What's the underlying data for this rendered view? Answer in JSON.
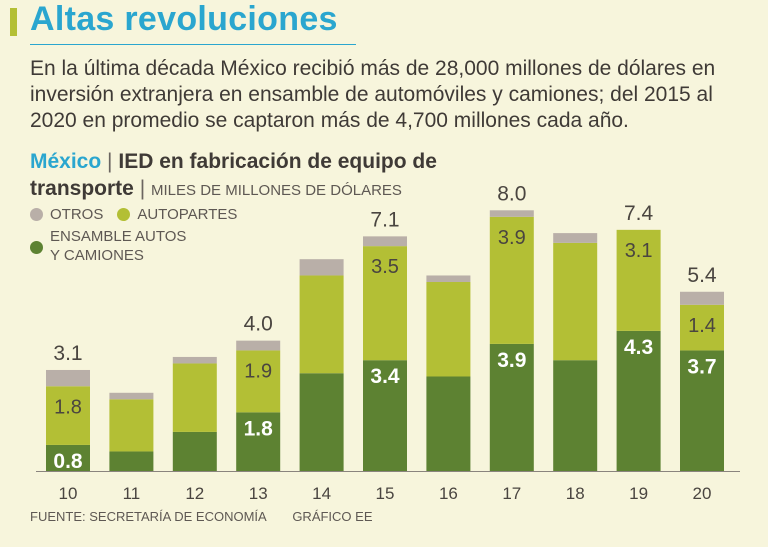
{
  "header": {
    "title": "Altas revoluciones",
    "intro": "En la última década México recibió más de 28,000 millones de dólares en inversión extranjera en ensamble de automóviles y camiones; del 2015 al 2020 en promedio se captaron más de 4,700 millones cada año."
  },
  "chart_heading": {
    "place": "México",
    "separator": "|",
    "topic": "IED en fabricación de equipo de transporte",
    "separator2": "|",
    "units": "MILES DE MILLONES DE DÓLARES"
  },
  "legend": {
    "otros": "OTROS",
    "autopartes": "AUTOPARTES",
    "ensamble": "ENSAMBLE AUTOS Y CAMIONES"
  },
  "footer": {
    "source": "FUENTE: SECRETARÍA DE ECONOMÍA",
    "credit": "GRÁFICO EE"
  },
  "colors": {
    "background": "#f7f5dc",
    "title": "#2aa6cf",
    "otros": "#b9afa8",
    "autopartes": "#b3bf35",
    "ensamble": "#5d8232",
    "text": "#3f3a36"
  },
  "chart_data": {
    "type": "bar",
    "stacked": true,
    "categories": [
      "10",
      "11",
      "12",
      "13",
      "14",
      "15",
      "16",
      "17",
      "18",
      "19",
      "20"
    ],
    "series": [
      {
        "name": "ENSAMBLE AUTOS Y CAMIONES",
        "values": [
          0.8,
          0.6,
          1.2,
          1.8,
          3.0,
          3.4,
          2.9,
          3.9,
          3.4,
          4.3,
          3.7
        ]
      },
      {
        "name": "AUTOPARTES",
        "values": [
          1.8,
          1.6,
          2.1,
          1.9,
          3.0,
          3.5,
          2.9,
          3.9,
          3.6,
          3.1,
          1.4
        ]
      },
      {
        "name": "OTROS",
        "values": [
          0.5,
          0.2,
          0.2,
          0.3,
          0.5,
          0.3,
          0.2,
          0.2,
          0.3,
          0.0,
          0.4
        ]
      }
    ],
    "totals": [
      3.1,
      null,
      null,
      4.0,
      null,
      7.1,
      null,
      8.0,
      null,
      7.4,
      5.4
    ],
    "labels": {
      "ensamble": [
        "0.8",
        "",
        "",
        "1.8",
        "",
        "3.4",
        "",
        "3.9",
        "",
        "4.3",
        "3.7"
      ],
      "autopartes": [
        "1.8",
        "",
        "",
        "1.9",
        "",
        "3.5",
        "",
        "3.9",
        "",
        "3.1",
        "1.4"
      ],
      "total": [
        "3.1",
        "",
        "",
        "4.0",
        "",
        "7.1",
        "",
        "8.0",
        "",
        "7.4",
        "5.4"
      ]
    },
    "ylim": [
      0,
      8.5
    ],
    "xlabel": "",
    "ylabel": ""
  }
}
